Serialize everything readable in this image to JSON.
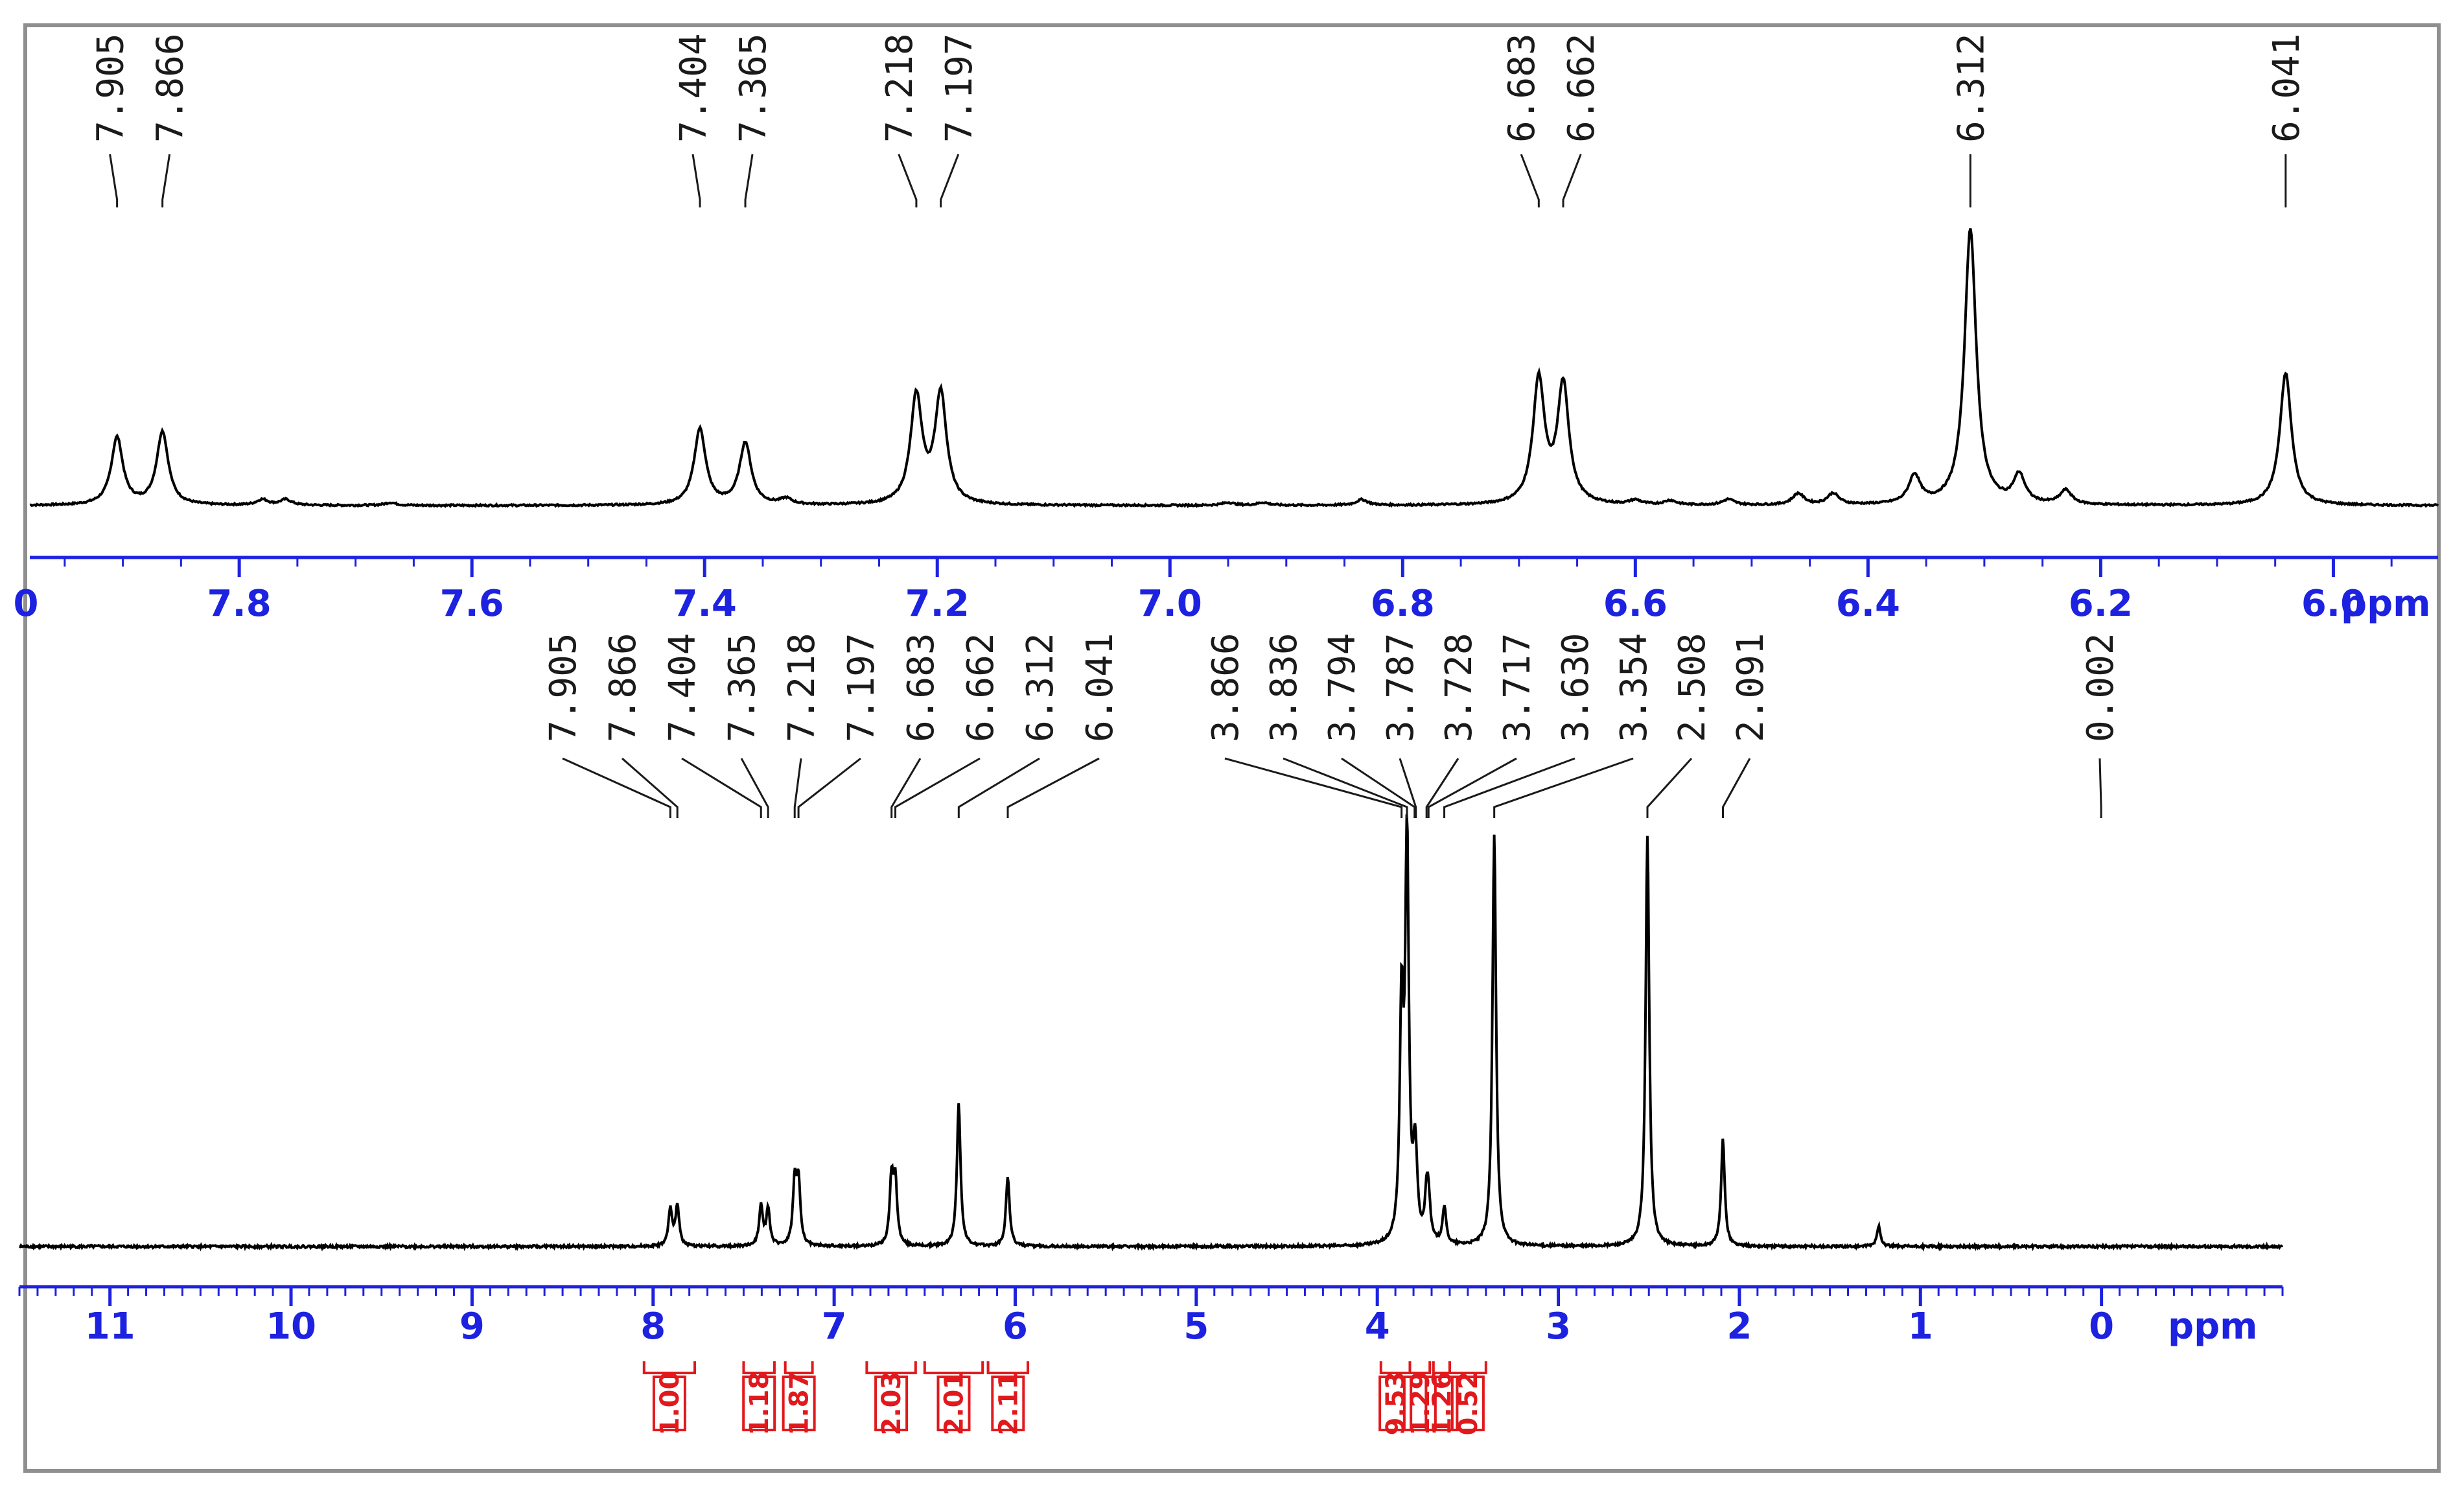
{
  "colors": {
    "axis": "#1d22e0",
    "spectrum": "#000000",
    "integral": "#e1191c",
    "frame": "#8f8f8f"
  },
  "chart_data": [
    {
      "type": "line",
      "title": "",
      "xlabel": "ppm",
      "ylabel": "",
      "x_direction": "decreasing",
      "xlim": [
        7.98,
        5.91
      ],
      "ylim": [
        0,
        1.1
      ],
      "ticks": [
        7.8,
        7.6,
        7.4,
        7.2,
        7.0,
        6.8,
        6.6,
        6.4,
        6.2,
        6.0
      ],
      "tick_labels": [
        "7.8",
        "7.6",
        "7.4",
        "7.2",
        "7.0",
        "6.8",
        "6.6",
        "6.4",
        "6.2",
        "6.0"
      ],
      "partial_left_tick_label": "0",
      "peak_labels": [
        "7.905",
        "7.866",
        "7.404",
        "7.365",
        "7.218",
        "7.197",
        "6.683",
        "6.662",
        "6.312",
        "6.041"
      ],
      "peaks": [
        {
          "x": 7.905,
          "y": 0.24
        },
        {
          "x": 7.866,
          "y": 0.26
        },
        {
          "x": 7.78,
          "y": 0.02
        },
        {
          "x": 7.76,
          "y": 0.02
        },
        {
          "x": 7.67,
          "y": 0.01
        },
        {
          "x": 7.404,
          "y": 0.27
        },
        {
          "x": 7.365,
          "y": 0.22
        },
        {
          "x": 7.33,
          "y": 0.02
        },
        {
          "x": 7.218,
          "y": 0.38
        },
        {
          "x": 7.197,
          "y": 0.39
        },
        {
          "x": 6.95,
          "y": 0.01
        },
        {
          "x": 6.92,
          "y": 0.01
        },
        {
          "x": 6.835,
          "y": 0.02
        },
        {
          "x": 6.683,
          "y": 0.44
        },
        {
          "x": 6.662,
          "y": 0.42
        },
        {
          "x": 6.6,
          "y": 0.015
        },
        {
          "x": 6.57,
          "y": 0.015
        },
        {
          "x": 6.52,
          "y": 0.02
        },
        {
          "x": 6.46,
          "y": 0.04
        },
        {
          "x": 6.43,
          "y": 0.04
        },
        {
          "x": 6.36,
          "y": 0.1
        },
        {
          "x": 6.312,
          "y": 0.98
        },
        {
          "x": 6.27,
          "y": 0.1
        },
        {
          "x": 6.23,
          "y": 0.05
        },
        {
          "x": 6.041,
          "y": 0.47
        }
      ]
    },
    {
      "type": "line",
      "title": "",
      "xlabel": "ppm",
      "ylabel": "",
      "x_direction": "decreasing",
      "xlim": [
        11.5,
        -1.0
      ],
      "ylim": [
        0,
        1.05
      ],
      "ticks": [
        11,
        10,
        9,
        8,
        7,
        6,
        5,
        4,
        3,
        2,
        1,
        0
      ],
      "tick_labels": [
        "11",
        "10",
        "9",
        "8",
        "7",
        "6",
        "5",
        "4",
        "3",
        "2",
        "1",
        "0"
      ],
      "peak_labels": [
        "7.905",
        "7.866",
        "7.404",
        "7.365",
        "7.218",
        "7.197",
        "6.683",
        "6.662",
        "6.312",
        "6.041",
        "3.866",
        "3.836",
        "3.794",
        "3.787",
        "3.728",
        "3.717",
        "3.630",
        "3.354",
        "2.508",
        "2.091",
        "0.002"
      ],
      "peaks": [
        {
          "x": 7.905,
          "y": 0.09
        },
        {
          "x": 7.866,
          "y": 0.1
        },
        {
          "x": 7.404,
          "y": 0.1
        },
        {
          "x": 7.365,
          "y": 0.09
        },
        {
          "x": 7.218,
          "y": 0.15
        },
        {
          "x": 7.197,
          "y": 0.15
        },
        {
          "x": 6.683,
          "y": 0.16
        },
        {
          "x": 6.662,
          "y": 0.15
        },
        {
          "x": 6.312,
          "y": 0.35
        },
        {
          "x": 6.041,
          "y": 0.17
        },
        {
          "x": 3.866,
          "y": 0.55
        },
        {
          "x": 3.836,
          "y": 0.97
        },
        {
          "x": 3.794,
          "y": 0.12
        },
        {
          "x": 3.787,
          "y": 0.11
        },
        {
          "x": 3.728,
          "y": 0.1
        },
        {
          "x": 3.717,
          "y": 0.09
        },
        {
          "x": 3.63,
          "y": 0.09
        },
        {
          "x": 3.354,
          "y": 1.0
        },
        {
          "x": 2.508,
          "y": 1.0
        },
        {
          "x": 2.091,
          "y": 0.26
        },
        {
          "x": 1.23,
          "y": 0.05
        },
        {
          "x": 0.002,
          "y": 0.0
        }
      ],
      "integrals": [
        {
          "value": "1.00",
          "from": 8.05,
          "to": 7.77
        },
        {
          "value": "1.18",
          "from": 7.5,
          "to": 7.33
        },
        {
          "value": "1.87",
          "from": 7.27,
          "to": 7.12
        },
        {
          "value": "2.03",
          "from": 6.82,
          "to": 6.55
        },
        {
          "value": "2.01",
          "from": 6.5,
          "to": 6.18
        },
        {
          "value": "2.11",
          "from": 6.15,
          "to": 5.93
        },
        {
          "value": "9.53",
          "from": 3.98,
          "to": 3.82
        },
        {
          "value": "1.29",
          "from": 3.82,
          "to": 3.71
        },
        {
          "value": "1.26",
          "from": 3.69,
          "to": 3.6
        },
        {
          "value": "0.52",
          "from": 3.6,
          "to": 3.4
        }
      ]
    }
  ]
}
